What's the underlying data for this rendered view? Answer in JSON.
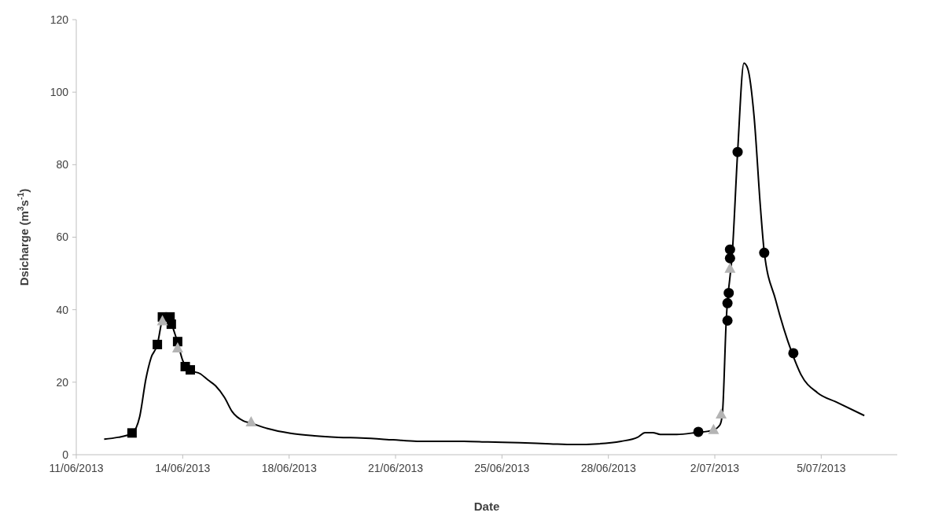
{
  "chart_data": {
    "type": "line",
    "xlabel": "Date",
    "ylabel": "Dsicharge (m$^{3}$s$^{-1}$)",
    "xlim": [
      "2013-06-11T00:00",
      "2013-07-08T00:00"
    ],
    "xticks": [
      {
        "value": "2013-06-11T00:00",
        "label": "11/06/2013"
      },
      {
        "value": "2013-06-14T12:00",
        "label": "14/06/2013"
      },
      {
        "value": "2013-06-18T00:00",
        "label": "18/06/2013"
      },
      {
        "value": "2013-06-21T12:00",
        "label": "21/06/2013"
      },
      {
        "value": "2013-06-25T00:00",
        "label": "25/06/2013"
      },
      {
        "value": "2013-06-28T12:00",
        "label": "28/06/2013"
      },
      {
        "value": "2013-07-02T00:00",
        "label": "2/07/2013"
      },
      {
        "value": "2013-07-05T12:00",
        "label": "5/07/2013"
      }
    ],
    "ylim": [
      0,
      120
    ],
    "yticks": [
      0,
      20,
      40,
      60,
      80,
      100,
      120
    ],
    "grid": false,
    "series": [
      {
        "color": "#000000",
        "marker": "none",
        "line_style": "solid",
        "x": [
          "2013-06-11T22:00",
          "2013-06-12T09:00",
          "2013-06-12T20:00",
          "2013-06-13T02:00",
          "2013-06-13T07:00",
          "2013-06-13T11:00",
          "2013-06-13T16:00",
          "2013-06-13T20:00",
          "2013-06-13T22:00",
          "2013-06-14T02:00",
          "2013-06-14T04:00",
          "2013-06-14T08:00",
          "2013-06-14T12:00",
          "2013-06-14T17:00",
          "2013-06-15T02:00",
          "2013-06-15T08:00",
          "2013-06-15T14:00",
          "2013-06-15T21:00",
          "2013-06-16T03:00",
          "2013-06-16T12:00",
          "2013-06-16T18:00",
          "2013-06-17T07:00",
          "2013-06-18T01:00",
          "2013-06-18T20:00",
          "2013-06-19T15:00",
          "2013-06-20T09:00",
          "2013-06-21T10:00",
          "2013-06-22T05:00",
          "2013-06-23T00:00",
          "2013-06-23T18:00",
          "2013-06-24T13:00",
          "2013-06-25T14:00",
          "2013-06-26T14:00",
          "2013-06-27T09:00",
          "2013-06-28T04:00",
          "2013-06-28T22:00",
          "2013-06-29T11:00",
          "2013-06-29T17:00",
          "2013-06-29T23:00",
          "2013-06-30T05:00",
          "2013-06-30T18:00",
          "2013-07-01T09:00",
          "2013-07-01T22:00",
          "2013-07-02T04:00",
          "2013-07-02T06:00",
          "2013-07-02T09:00",
          "2013-07-02T14:00",
          "2013-07-02T18:00",
          "2013-07-02T23:00",
          "2013-07-03T02:00",
          "2013-07-03T07:00",
          "2013-07-03T12:00",
          "2013-07-03T15:00",
          "2013-07-04T00:00",
          "2013-07-04T13:00",
          "2013-07-04T20:00",
          "2013-07-05T09:00",
          "2013-07-06T00:00",
          "2013-07-06T22:00"
        ],
        "values": [
          4.3,
          4.8,
          5.9,
          10.4,
          21,
          26.7,
          30.4,
          37.5,
          39,
          38,
          35.4,
          31,
          26,
          23.4,
          22.3,
          20.6,
          19,
          15.8,
          11.9,
          9.3,
          8.7,
          7.2,
          5.9,
          5.2,
          4.8,
          4.6,
          4.1,
          3.7,
          3.7,
          3.7,
          3.5,
          3.3,
          3.0,
          2.8,
          3.0,
          3.7,
          4.8,
          6.1,
          6.1,
          5.6,
          5.6,
          6.1,
          6.7,
          8.2,
          11.3,
          36.9,
          56.6,
          83.4,
          108,
          106.5,
          93.3,
          68.3,
          56,
          42.7,
          28,
          22.1,
          17.1,
          14.5,
          10.8
        ]
      },
      {
        "type": "scatter",
        "color": "#000000",
        "marker": "square",
        "x": [
          "2013-06-12T20:00",
          "2013-06-13T16:00",
          "2013-06-13T20:00",
          "2013-06-14T02:00",
          "2013-06-14T03:00",
          "2013-06-14T08:00",
          "2013-06-14T14:00",
          "2013-06-14T18:00"
        ],
        "values": [
          6,
          30.4,
          38,
          38,
          36,
          31.2,
          24.3,
          23.4
        ]
      },
      {
        "type": "scatter",
        "color": "#b4b4b4",
        "marker": "triangle",
        "x": [
          "2013-06-13T20:00",
          "2013-06-14T08:00",
          "2013-06-16T18:00",
          "2013-07-01T23:00",
          "2013-07-02T05:00",
          "2013-07-02T12:00"
        ],
        "values": [
          37,
          29.5,
          9.1,
          7,
          11.3,
          51.5
        ]
      },
      {
        "type": "scatter",
        "color": "#000000",
        "marker": "circle",
        "x": [
          "2013-07-01T11:00",
          "2013-07-02T10:00",
          "2013-07-02T10:00",
          "2013-07-02T11:00",
          "2013-07-02T12:00",
          "2013-07-02T12:00",
          "2013-07-02T18:00",
          "2013-07-03T15:00",
          "2013-07-04T14:00"
        ],
        "values": [
          6.3,
          37,
          41.8,
          44.6,
          54.2,
          56.6,
          83.5,
          55.7,
          28
        ]
      }
    ]
  }
}
